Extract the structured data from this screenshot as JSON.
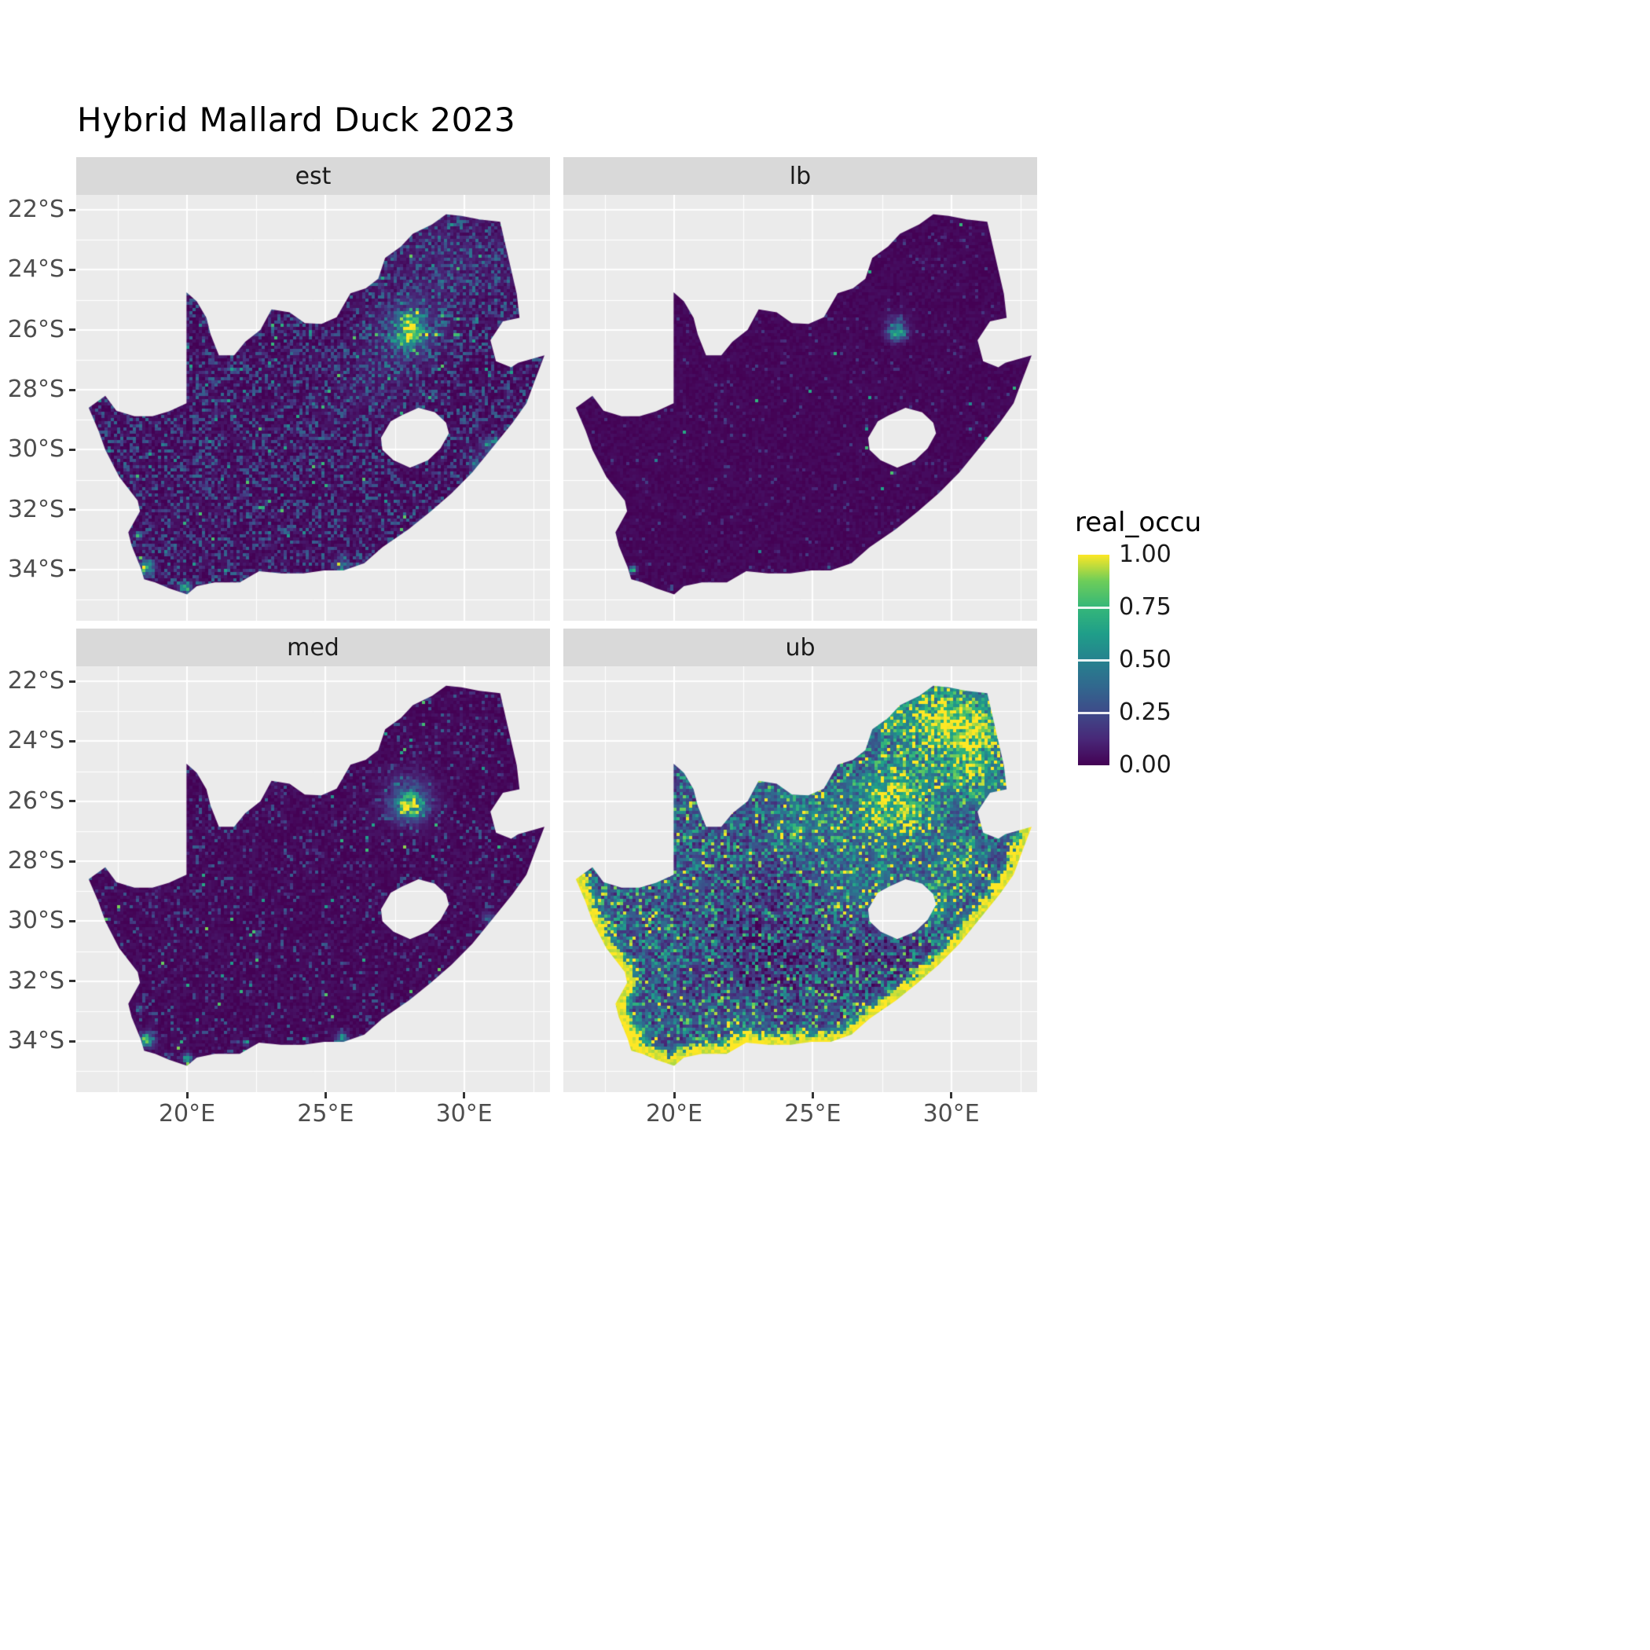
{
  "chart_data": {
    "type": "heatmap",
    "title": "Hybrid Mallard Duck 2023",
    "facets": [
      {
        "label": "est",
        "base": 0.03,
        "jitter": 0.09,
        "speckle_density": 0.33,
        "speckle_range": [
          0.08,
          0.4
        ],
        "bright_density": 0.012,
        "bright_range": [
          0.45,
          0.85
        ],
        "coast_strength": 0,
        "coast_width": 0,
        "hotspots": [
          [
            28.05,
            -26.15,
            0.5,
            1.0
          ],
          [
            28.1,
            -25.7,
            0.35,
            0.55
          ],
          [
            27.95,
            -26.0,
            1.3,
            0.3
          ],
          [
            29.5,
            -23.8,
            2.2,
            0.1
          ],
          [
            26.7,
            -27.8,
            1.5,
            0.08
          ],
          [
            18.55,
            -33.95,
            0.3,
            1.0
          ],
          [
            18.25,
            -32.85,
            0.15,
            0.9
          ],
          [
            19.95,
            -34.6,
            0.25,
            0.7
          ],
          [
            25.6,
            -33.9,
            0.3,
            0.55
          ],
          [
            30.95,
            -29.85,
            0.35,
            0.5
          ],
          [
            27.9,
            -32.95,
            0.2,
            0.45
          ],
          [
            30.4,
            -30.5,
            0.3,
            0.4
          ]
        ]
      },
      {
        "label": "lb",
        "base": 0.02,
        "jitter": 0.05,
        "speckle_density": 0.05,
        "speckle_range": [
          0.05,
          0.22
        ],
        "bright_density": 0.002,
        "bright_range": [
          0.4,
          0.8
        ],
        "coast_strength": 0,
        "coast_width": 0,
        "hotspots": [
          [
            28.05,
            -26.1,
            0.35,
            0.9
          ],
          [
            28.0,
            -25.8,
            0.5,
            0.18
          ],
          [
            18.5,
            -34.0,
            0.15,
            0.85
          ],
          [
            19.9,
            -34.6,
            0.1,
            0.5
          ],
          [
            25.6,
            -33.9,
            0.1,
            0.4
          ],
          [
            30.7,
            -29.3,
            0.1,
            0.45
          ]
        ]
      },
      {
        "label": "med",
        "base": 0.025,
        "jitter": 0.07,
        "speckle_density": 0.12,
        "speckle_range": [
          0.08,
          0.35
        ],
        "bright_density": 0.006,
        "bright_range": [
          0.5,
          0.9
        ],
        "coast_strength": 0,
        "coast_width": 0,
        "hotspots": [
          [
            28.05,
            -26.15,
            0.55,
            1.05
          ],
          [
            28.0,
            -25.9,
            1.0,
            0.32
          ],
          [
            18.55,
            -33.95,
            0.3,
            1.0
          ],
          [
            18.3,
            -32.9,
            0.12,
            0.7
          ],
          [
            20.0,
            -34.55,
            0.2,
            0.8
          ],
          [
            22.1,
            -34.05,
            0.15,
            0.55
          ],
          [
            25.6,
            -33.9,
            0.25,
            0.6
          ],
          [
            30.9,
            -29.9,
            0.25,
            0.45
          ],
          [
            27.9,
            -32.9,
            0.15,
            0.4
          ]
        ]
      },
      {
        "label": "ub",
        "base": 0.22,
        "jitter": 0.26,
        "speckle_density": 0.5,
        "speckle_range": [
          0.15,
          0.75
        ],
        "bright_density": 0.06,
        "bright_range": [
          0.85,
          1.0
        ],
        "coast_strength": 0.9,
        "coast_width": 0.55,
        "hotspots": [
          [
            28.0,
            -26.0,
            1.5,
            0.85
          ],
          [
            29.6,
            -23.4,
            1.7,
            0.7
          ],
          [
            31.0,
            -23.6,
            1.2,
            0.6
          ],
          [
            30.8,
            -25.2,
            1.1,
            0.55
          ],
          [
            27.3,
            -22.9,
            1.0,
            0.45
          ],
          [
            24.8,
            -26.5,
            1.4,
            0.3
          ],
          [
            26.8,
            -28.6,
            1.6,
            0.22
          ],
          [
            29.3,
            -29.4,
            0.8,
            0.5
          ],
          [
            30.2,
            -28.0,
            1.2,
            0.35
          ],
          [
            18.6,
            -33.8,
            0.5,
            0.7
          ],
          [
            22.5,
            -33.9,
            1.0,
            0.3
          ],
          [
            23.5,
            -30.8,
            2.8,
            -0.22
          ],
          [
            27.8,
            -31.3,
            1.8,
            -0.15
          ]
        ]
      }
    ],
    "x_axis": {
      "domain": [
        16.0,
        33.1
      ],
      "ticks": [
        {
          "value": 20,
          "label": "20°E"
        },
        {
          "value": 25,
          "label": "25°E"
        },
        {
          "value": 30,
          "label": "30°E"
        }
      ],
      "minor": [
        17.5,
        22.5,
        27.5,
        32.5
      ]
    },
    "y_axis": {
      "domain": [
        -35.7,
        -21.5
      ],
      "ticks": [
        {
          "value": -22,
          "label": "22°S"
        },
        {
          "value": -24,
          "label": "24°S"
        },
        {
          "value": -26,
          "label": "26°S"
        },
        {
          "value": -28,
          "label": "28°S"
        },
        {
          "value": -30,
          "label": "30°S"
        },
        {
          "value": -32,
          "label": "32°S"
        },
        {
          "value": -34,
          "label": "34°S"
        }
      ],
      "minor": [
        -23,
        -25,
        -27,
        -29,
        -31,
        -33,
        -35
      ]
    },
    "legend": {
      "title": "real_occu",
      "ticks": [
        {
          "value": 1.0,
          "label": "1.00"
        },
        {
          "value": 0.75,
          "label": "0.75"
        },
        {
          "value": 0.5,
          "label": "0.50"
        },
        {
          "value": 0.25,
          "label": "0.25"
        },
        {
          "value": 0.0,
          "label": "0.00"
        }
      ],
      "viridis_stops": [
        "#440154",
        "#482878",
        "#3E4A89",
        "#31688E",
        "#26828E",
        "#1F9E89",
        "#35B779",
        "#6DCD59",
        "#FDE725"
      ]
    },
    "map": {
      "south_africa_outline": [
        [
          16.45,
          -28.6
        ],
        [
          17.05,
          -28.2
        ],
        [
          17.45,
          -28.7
        ],
        [
          18.1,
          -28.88
        ],
        [
          18.75,
          -28.88
        ],
        [
          19.35,
          -28.72
        ],
        [
          19.98,
          -28.45
        ],
        [
          19.98,
          -24.75
        ],
        [
          20.35,
          -25.05
        ],
        [
          20.7,
          -25.6
        ],
        [
          20.85,
          -26.15
        ],
        [
          21.15,
          -26.85
        ],
        [
          21.7,
          -26.85
        ],
        [
          22.1,
          -26.4
        ],
        [
          22.65,
          -26.0
        ],
        [
          23.05,
          -25.32
        ],
        [
          23.7,
          -25.42
        ],
        [
          24.25,
          -25.78
        ],
        [
          24.85,
          -25.8
        ],
        [
          25.4,
          -25.58
        ],
        [
          25.9,
          -24.78
        ],
        [
          26.45,
          -24.62
        ],
        [
          26.9,
          -24.3
        ],
        [
          27.15,
          -23.6
        ],
        [
          27.72,
          -23.22
        ],
        [
          28.15,
          -22.8
        ],
        [
          28.85,
          -22.48
        ],
        [
          29.35,
          -22.15
        ],
        [
          29.9,
          -22.2
        ],
        [
          30.55,
          -22.32
        ],
        [
          31.3,
          -22.4
        ],
        [
          31.6,
          -23.6
        ],
        [
          31.9,
          -24.8
        ],
        [
          32.0,
          -25.6
        ],
        [
          31.4,
          -25.72
        ],
        [
          30.95,
          -26.35
        ],
        [
          31.15,
          -27.05
        ],
        [
          31.7,
          -27.25
        ],
        [
          31.95,
          -27.1
        ],
        [
          32.9,
          -26.85
        ],
        [
          32.55,
          -27.7
        ],
        [
          32.25,
          -28.45
        ],
        [
          31.75,
          -29.1
        ],
        [
          31.05,
          -29.9
        ],
        [
          30.3,
          -30.75
        ],
        [
          29.55,
          -31.45
        ],
        [
          28.8,
          -32.05
        ],
        [
          28.0,
          -32.65
        ],
        [
          27.05,
          -33.25
        ],
        [
          26.4,
          -33.78
        ],
        [
          25.65,
          -34.02
        ],
        [
          24.95,
          -34.02
        ],
        [
          24.2,
          -34.12
        ],
        [
          23.4,
          -34.12
        ],
        [
          22.6,
          -34.05
        ],
        [
          21.9,
          -34.42
        ],
        [
          21.0,
          -34.42
        ],
        [
          20.35,
          -34.55
        ],
        [
          20.0,
          -34.82
        ],
        [
          19.35,
          -34.62
        ],
        [
          18.85,
          -34.42
        ],
        [
          18.45,
          -34.32
        ],
        [
          18.32,
          -33.92
        ],
        [
          18.0,
          -33.2
        ],
        [
          17.88,
          -32.75
        ],
        [
          18.3,
          -32.05
        ],
        [
          18.22,
          -31.7
        ],
        [
          17.55,
          -30.9
        ],
        [
          17.05,
          -30.0
        ],
        [
          16.8,
          -29.35
        ]
      ],
      "lesotho_hole": [
        [
          27.0,
          -29.6
        ],
        [
          27.35,
          -29.05
        ],
        [
          27.75,
          -28.85
        ],
        [
          28.35,
          -28.6
        ],
        [
          28.95,
          -28.75
        ],
        [
          29.35,
          -29.1
        ],
        [
          29.45,
          -29.45
        ],
        [
          29.15,
          -29.95
        ],
        [
          28.7,
          -30.35
        ],
        [
          28.05,
          -30.6
        ],
        [
          27.45,
          -30.35
        ],
        [
          27.05,
          -30.0
        ]
      ],
      "coastline": [
        [
          32.9,
          -26.85
        ],
        [
          32.55,
          -27.7
        ],
        [
          32.25,
          -28.45
        ],
        [
          31.75,
          -29.1
        ],
        [
          31.05,
          -29.9
        ],
        [
          30.3,
          -30.75
        ],
        [
          29.55,
          -31.45
        ],
        [
          28.8,
          -32.05
        ],
        [
          28.0,
          -32.65
        ],
        [
          27.05,
          -33.25
        ],
        [
          26.4,
          -33.78
        ],
        [
          25.65,
          -34.02
        ],
        [
          24.95,
          -34.02
        ],
        [
          24.2,
          -34.12
        ],
        [
          23.4,
          -34.12
        ],
        [
          22.6,
          -34.05
        ],
        [
          21.9,
          -34.42
        ],
        [
          21.0,
          -34.42
        ],
        [
          20.35,
          -34.55
        ],
        [
          20.0,
          -34.82
        ],
        [
          19.35,
          -34.62
        ],
        [
          18.85,
          -34.42
        ],
        [
          18.45,
          -34.32
        ],
        [
          18.32,
          -33.92
        ],
        [
          18.0,
          -33.2
        ],
        [
          17.88,
          -32.75
        ],
        [
          18.3,
          -32.05
        ],
        [
          18.22,
          -31.7
        ],
        [
          17.55,
          -30.9
        ],
        [
          17.05,
          -30.0
        ],
        [
          16.8,
          -29.35
        ],
        [
          16.45,
          -28.6
        ]
      ]
    },
    "colors": {
      "panel_bg": "#EBEBEB",
      "strip_bg": "#D9D9D9",
      "grid": "#FFFFFF",
      "axis_text": "#4D4D4D",
      "strip_text": "#1A1A1A",
      "title_text": "#000000",
      "tick_mark": "#333333"
    }
  }
}
